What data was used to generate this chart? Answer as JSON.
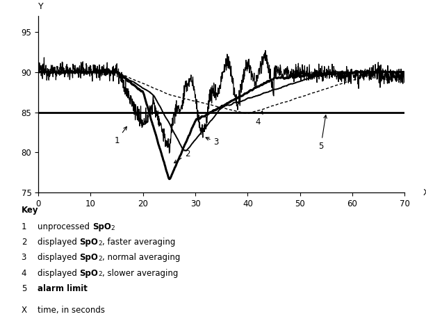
{
  "xlim": [
    0,
    70
  ],
  "ylim": [
    75,
    97
  ],
  "xticks": [
    0,
    10,
    20,
    30,
    40,
    50,
    60,
    70
  ],
  "yticks": [
    75,
    80,
    85,
    90,
    95
  ],
  "alarm_limit": 85,
  "xlabel": "X",
  "ylabel": "Y",
  "key_title": "Key",
  "background_color": "#ffffff",
  "line_color": "#000000",
  "figsize": [
    6.13,
    4.62
  ],
  "dpi": 100
}
